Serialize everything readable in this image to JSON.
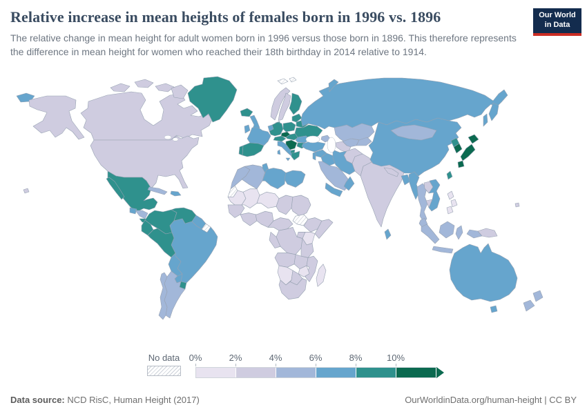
{
  "header": {
    "title": "Relative increase in mean heights of females born in 1996 vs. 1896",
    "subtitle": "The relative change in mean height for adult women born in 1996 versus those born in 1896. This therefore represents the difference in mean height for women who reached their 18th birthday in 2014 relative to 1914.",
    "logo": {
      "line1": "Our World",
      "line2": "in Data",
      "bg": "#132c4e",
      "accent": "#cb2d24"
    }
  },
  "legend": {
    "no_data_label": "No data",
    "tick_labels": [
      "0%",
      "2%",
      "4%",
      "6%",
      "8%",
      "10%"
    ]
  },
  "footer": {
    "data_source_label": "Data source:",
    "data_source_value": "NCD RisC, Human Height (2017)",
    "credit": "OurWorldinData.org/human-height | CC BY"
  },
  "chart_data": {
    "type": "heatmap",
    "subtype": "choropleth-world-map",
    "title": "Relative increase in mean heights of females born in 1996 vs. 1896",
    "unit": "%",
    "bin_edges_percent": [
      0,
      2,
      4,
      6,
      8,
      10
    ],
    "bin_labels": [
      "0-2%",
      "2-4%",
      "4-6%",
      "6-8%",
      "8-10%",
      ">10%"
    ],
    "palette": [
      "#e8e3f0",
      "#cfcce0",
      "#a2b7d9",
      "#66a5cd",
      "#2f918d",
      "#0b6a50"
    ],
    "no_data_pattern": "diagonal-hatch",
    "border_color": "#97a2b2",
    "ocean_color": "#ffffff",
    "legend_position": "bottom",
    "regions": {
      "canada": 1,
      "united-states": 1,
      "alaska": 1,
      "hawaii": 1,
      "greenland": 4,
      "iceland": 4,
      "mexico": 4,
      "guatemala": 3,
      "honduras-nicaragua": 2,
      "costa-rica-panama": 4,
      "cuba": 2,
      "hispaniola": 3,
      "colombia": 4,
      "venezuela": 4,
      "guyana-suriname": 3,
      "french-guiana": "nd",
      "ecuador": 4,
      "peru": 4,
      "brazil": 3,
      "bolivia": 3,
      "paraguay": 3,
      "uruguay": 4,
      "argentina": 2,
      "chile": 2,
      "svalbard": "nd",
      "norway": 1,
      "sweden": 1,
      "finland": 4,
      "denmark": 4,
      "united-kingdom": 3,
      "ireland": 3,
      "portugal": 4,
      "spain": 4,
      "france": 3,
      "benelux": 3,
      "germany": 4,
      "poland": 4,
      "czechia": 5,
      "slovakia-hungary": 4,
      "austria-switzerland": 4,
      "italy": 3,
      "balkans": 5,
      "albania-macedonia": 4,
      "greece": 4,
      "romania": 3,
      "bulgaria": 4,
      "baltic-states": 4,
      "belarus": 4,
      "ukraine": 4,
      "russia": 3,
      "turkey": 3,
      "caucasus": 2,
      "kazakhstan": 2,
      "uzbekistan": 2,
      "turkmenistan": 1,
      "kyrgyzstan-tajikistan": 2,
      "syria": 3,
      "levant": 3,
      "iraq": 3,
      "iran": 3,
      "saudi-arabia": 2,
      "yemen": 3,
      "oman": 3,
      "morocco": 2,
      "western-sahara": "nd",
      "algeria": 2,
      "tunisia": 3,
      "libya": 3,
      "egypt": 3,
      "mauritania": 0,
      "mali": 0,
      "niger": 0,
      "chad": 1,
      "sudan": 1,
      "south-sudan": "nd",
      "senegal-guinea": 1,
      "ivory-coast-ghana": 1,
      "nigeria": 1,
      "cameroon-car": 1,
      "ethiopia": 1,
      "somalia": 1,
      "kenya": 0,
      "uganda": 1,
      "dr-congo": 1,
      "gabon-congo": 1,
      "tanzania": 1,
      "angola": 1,
      "zambia": 1,
      "mozambique": 1,
      "zimbabwe": 0,
      "namibia": 0,
      "botswana": 1,
      "south-africa": 1,
      "madagascar": 0,
      "afghanistan": 1,
      "pakistan": 1,
      "india": 1,
      "nepal": 1,
      "bangladesh": 3,
      "sri-lanka": 3,
      "myanmar": 3,
      "thailand": 2,
      "laos": 1,
      "cambodia": 1,
      "vietnam": 3,
      "malaysia": 2,
      "china": 3,
      "mongolia": 2,
      "north-korea": 4,
      "south-korea": 5,
      "japan": 5,
      "taiwan": 4,
      "philippines": 0,
      "indonesia": 2,
      "papua-new-guinea": 1,
      "australia": 3,
      "new-zealand": 2,
      "fiji": 1
    }
  }
}
